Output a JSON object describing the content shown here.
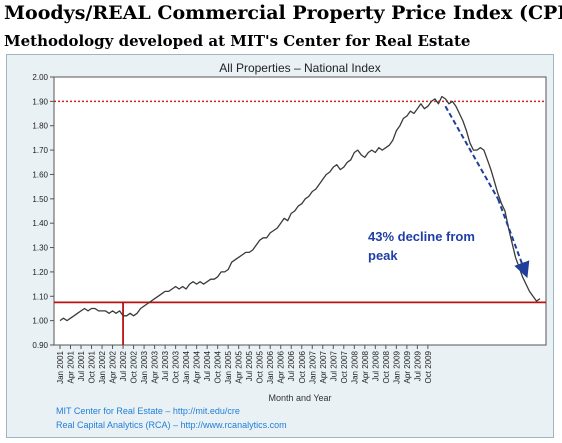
{
  "header": {
    "title": "Moodys/REAL Commercial Property Price Index (CPPI)",
    "subtitle": "Methodology developed at MIT's Center for Real Estate"
  },
  "chart_data": {
    "type": "line",
    "title": "All Properties – National Index",
    "xlabel": "Month and Year",
    "ylabel": "",
    "ylim": [
      0.9,
      2.0
    ],
    "yticks": [
      "0.90",
      "1.00",
      "1.10",
      "1.20",
      "1.30",
      "1.40",
      "1.50",
      "1.60",
      "1.70",
      "1.80",
      "1.90",
      "2.00"
    ],
    "xticks": [
      "Jan 2001",
      "Apr 2001",
      "Jul 2001",
      "Oct 2001",
      "Jan 2002",
      "Apr 2002",
      "Jul 2002",
      "Oct 2002",
      "Jan 2003",
      "Apr 2003",
      "Jul 2003",
      "Oct 2003",
      "Jan 2004",
      "Apr 2004",
      "Jul 2004",
      "Oct 2004",
      "Jan 2005",
      "Apr 2005",
      "Jul 2005",
      "Oct 2005",
      "Jan 2006",
      "Apr 2006",
      "Jul 2006",
      "Oct 2006",
      "Jan 2007",
      "Apr 2007",
      "Jul 2007",
      "Oct 2007",
      "Jan 2008",
      "Apr 2008",
      "Jul 2008",
      "Oct 2008",
      "Jan 2009",
      "Apr 2009",
      "Jul 2009",
      "Oct 2009"
    ],
    "series": [
      {
        "values": [
          1.0,
          1.01,
          1.0,
          1.01,
          1.02,
          1.03,
          1.04,
          1.05,
          1.04,
          1.05,
          1.05,
          1.04,
          1.04,
          1.04,
          1.03,
          1.04,
          1.03,
          1.04,
          1.02,
          1.02,
          1.03,
          1.02,
          1.03,
          1.05,
          1.06,
          1.07,
          1.08,
          1.09,
          1.1,
          1.11,
          1.12,
          1.12,
          1.13,
          1.14,
          1.13,
          1.14,
          1.13,
          1.15,
          1.16,
          1.15,
          1.16,
          1.15,
          1.16,
          1.17,
          1.17,
          1.18,
          1.2,
          1.2,
          1.21,
          1.24,
          1.25,
          1.26,
          1.27,
          1.28,
          1.28,
          1.29,
          1.31,
          1.33,
          1.34,
          1.34,
          1.36,
          1.37,
          1.38,
          1.4,
          1.42,
          1.41,
          1.44,
          1.45,
          1.47,
          1.48,
          1.5,
          1.51,
          1.53,
          1.54,
          1.56,
          1.58,
          1.6,
          1.61,
          1.63,
          1.64,
          1.62,
          1.63,
          1.65,
          1.66,
          1.69,
          1.7,
          1.68,
          1.67,
          1.69,
          1.7,
          1.69,
          1.71,
          1.7,
          1.71,
          1.72,
          1.74,
          1.78,
          1.8,
          1.83,
          1.84,
          1.86,
          1.85,
          1.87,
          1.89,
          1.87,
          1.88,
          1.9,
          1.91,
          1.89,
          1.92,
          1.91,
          1.89,
          1.9,
          1.88,
          1.85,
          1.82,
          1.78,
          1.73,
          1.7,
          1.7,
          1.71,
          1.7,
          1.66,
          1.62,
          1.57,
          1.52,
          1.48,
          1.45,
          1.38,
          1.32,
          1.26,
          1.22,
          1.18,
          1.15,
          1.12,
          1.1,
          1.08,
          1.09
        ]
      }
    ],
    "reference_lines": [
      1.9,
      1.075
    ],
    "marker_x": "Jul 2002",
    "annotation": "43% decline from peak",
    "grid": false,
    "legend": "none"
  },
  "footer": {
    "source1": "MIT Center for Real Estate – http://mit.edu/cre",
    "source2": "Real Capital Analytics (RCA) – http://www.rcanalytics.com"
  },
  "colors": {
    "line": "#3a3a3a",
    "peak_line": "#cc2222",
    "current_line": "#bb1111",
    "trend_arrow": "#1f3f9a",
    "annotation": "#1f3fa6",
    "source_text": "#1f7fd8"
  }
}
